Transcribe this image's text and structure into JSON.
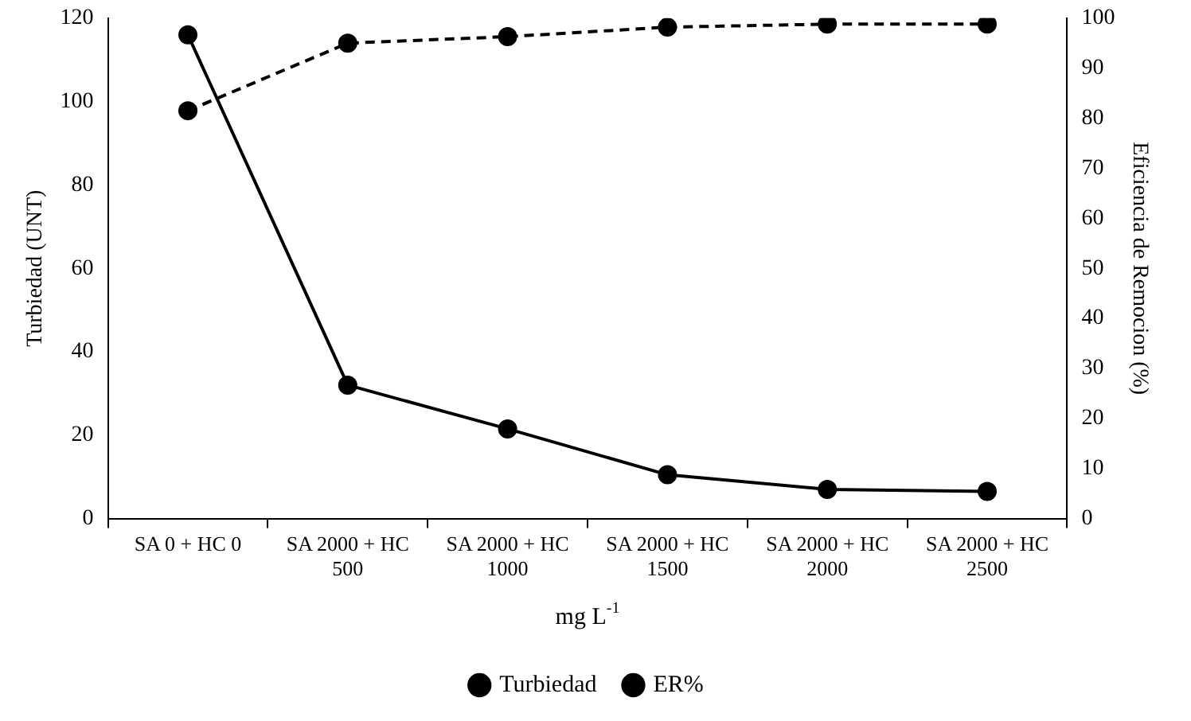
{
  "chart_data": {
    "type": "line",
    "categories": [
      "SA 0 + HC 0",
      "SA 2000 + HC 500",
      "SA 2000 + HC 1000",
      "SA 2000 + HC 1500",
      "SA 2000 + HC 2000",
      "SA 2000 + HC 2500"
    ],
    "series": [
      {
        "name": "Turbiedad",
        "color": "#000000",
        "values": [
          116,
          32,
          21.5,
          10.5,
          7,
          6.5
        ],
        "line_style": "solid"
      },
      {
        "name": "ER%",
        "color": "#000000",
        "values": [
          81.5,
          95,
          96.3,
          98.2,
          98.8,
          98.8
        ],
        "axis": "y2",
        "line_style": "dashed"
      }
    ],
    "xlabel": "mg L$^{-1}$",
    "ylabel": "Turbiedad (UNT)",
    "y2label": "Eficiencia de Remocion (%)",
    "ylim": [
      0,
      120
    ],
    "yticks": [
      0,
      20,
      40,
      60,
      80,
      100,
      120
    ],
    "y2lim": [
      0,
      100
    ],
    "y2ticks": [
      0,
      10,
      20,
      30,
      40,
      50,
      60,
      70,
      80,
      90,
      100
    ],
    "marker": "circle",
    "grid": false,
    "legend": "bottom"
  }
}
